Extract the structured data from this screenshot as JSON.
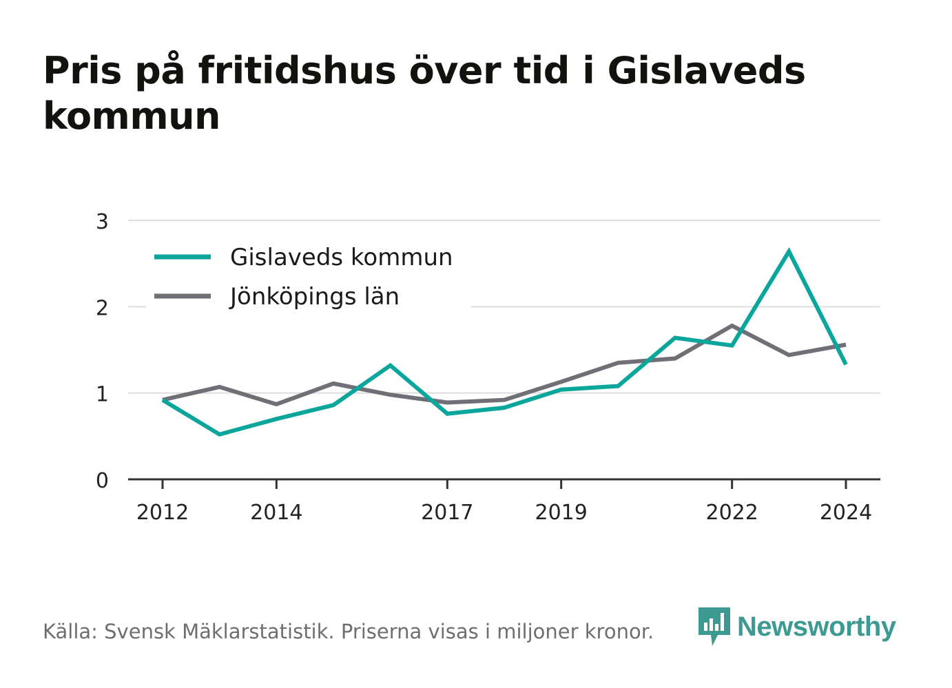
{
  "title": "Pris på fritidshus över tid i Gislaveds kommun",
  "footer": {
    "source": "Källa: Svensk Mäklarstatistik. Priserna visas i miljoner kronor."
  },
  "brand": {
    "name": "Newsworthy",
    "color": "#3d9a92"
  },
  "chart_data": {
    "type": "line",
    "x": [
      2012,
      2013,
      2014,
      2015,
      2016,
      2017,
      2018,
      2019,
      2020,
      2021,
      2022,
      2023,
      2024
    ],
    "x_tick_labels": [
      "2012",
      "2014",
      "2017",
      "2019",
      "2022",
      "2024"
    ],
    "y_tick_labels": [
      "0",
      "1",
      "2",
      "3"
    ],
    "ylim": [
      0,
      3
    ],
    "xlim": [
      2012,
      2024
    ],
    "grid": true,
    "legend_position": "top-left",
    "series": [
      {
        "name": "Gislaveds kommun",
        "color": "#0aa59b",
        "values": [
          0.92,
          0.52,
          0.7,
          0.86,
          1.32,
          0.76,
          0.83,
          1.04,
          1.08,
          1.64,
          1.55,
          2.64,
          1.33
        ]
      },
      {
        "name": "Jönköpings län",
        "color": "#706e76",
        "values": [
          0.92,
          1.07,
          0.87,
          1.11,
          0.98,
          0.89,
          0.92,
          1.13,
          1.35,
          1.4,
          1.78,
          1.44,
          1.56
        ]
      }
    ]
  }
}
